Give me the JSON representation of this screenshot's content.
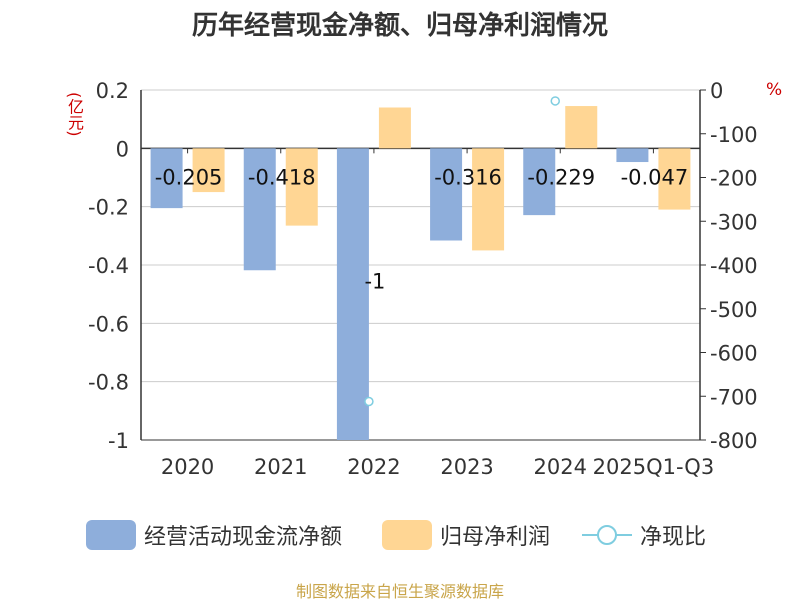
{
  "title": "历年经营现金净额、归母净利润情况",
  "source": "制图数据来自恒生聚源数据库",
  "colors": {
    "cash": "#8eaedb",
    "profit": "#ffd694",
    "ratio": "#7fcde0",
    "unit": "#cc0000"
  },
  "chart_data": {
    "type": "bar",
    "categories": [
      "2020",
      "2021",
      "2022",
      "2023",
      "2024",
      "2025Q1-Q3"
    ],
    "left_axis": {
      "unit": "(亿元)",
      "ticks": [
        "0.2",
        "0",
        "-0.2",
        "-0.4",
        "-0.6",
        "-0.8",
        "-1"
      ],
      "range": [
        -1,
        0.2
      ]
    },
    "right_axis": {
      "unit": "%",
      "ticks": [
        "0",
        "-100",
        "-200",
        "-300",
        "-400",
        "-500",
        "-600",
        "-700",
        "-800"
      ],
      "range": [
        -800,
        0
      ]
    },
    "series": [
      {
        "name": "经营活动现金流净额",
        "axis": "left",
        "kind": "bar",
        "values": [
          -0.205,
          -0.418,
          -1,
          -0.316,
          -0.229,
          -0.047
        ],
        "labels": [
          "-0.205",
          "-0.418",
          "-1",
          "-0.316",
          "-0.229",
          "-0.047"
        ]
      },
      {
        "name": "归母净利润",
        "axis": "left",
        "kind": "bar",
        "values": [
          -0.15,
          -0.265,
          0.14,
          -0.35,
          0.145,
          -0.21
        ]
      },
      {
        "name": "净现比",
        "axis": "right",
        "kind": "line",
        "values": [
          null,
          null,
          -712,
          null,
          -25,
          null
        ]
      }
    ],
    "grid": true,
    "legend_position": "bottom"
  }
}
